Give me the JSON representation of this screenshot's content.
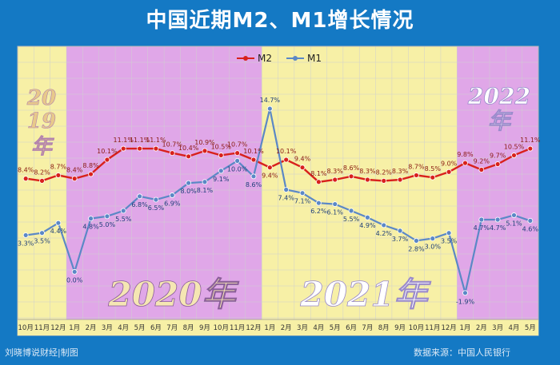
{
  "header": {
    "title": "中国近期M2、M1增长情况"
  },
  "footer": {
    "credit": "刘晓博说财经|制图",
    "source": "数据来源：中国人民银行"
  },
  "overlay": {
    "year_2019_top": "20",
    "year_2019_mid": "19",
    "year_2019_bottom": "年",
    "year_2020": "2020年",
    "year_2021": "2021年",
    "year_2022_top": "2022",
    "year_2022_bottom": "年"
  },
  "colors": {
    "m2": "#d8211c",
    "m1": "#5b88c6",
    "yellow": "#f7f0a6",
    "purple": "#e0a7e8"
  },
  "chart_data": {
    "type": "line",
    "title": "中国近期M2、M1增长情况",
    "legend_position": "top-center",
    "categories": [
      "10月",
      "11月",
      "12月",
      "1月",
      "2月",
      "3月",
      "4月",
      "5月",
      "6月",
      "7月",
      "8月",
      "9月",
      "10月",
      "11月",
      "12月",
      "1月",
      "2月",
      "3月",
      "4月",
      "5月",
      "6月",
      "7月",
      "8月",
      "9月",
      "10月",
      "11月",
      "12月",
      "1月",
      "2月",
      "3月",
      "4月",
      "5月"
    ],
    "series": [
      {
        "name": "M2",
        "values": [
          8.4,
          8.2,
          8.7,
          8.4,
          8.8,
          10.1,
          11.1,
          11.1,
          11.1,
          10.7,
          10.4,
          10.9,
          10.5,
          10.7,
          10.1,
          9.4,
          10.1,
          9.4,
          8.1,
          8.3,
          8.6,
          8.3,
          8.2,
          8.3,
          8.7,
          8.5,
          9.0,
          9.8,
          9.2,
          9.7,
          10.5,
          11.1
        ]
      },
      {
        "name": "M1",
        "values": [
          3.3,
          3.5,
          4.4,
          0.0,
          4.8,
          5.0,
          5.5,
          6.8,
          6.5,
          6.9,
          8.0,
          8.1,
          9.1,
          10.0,
          8.6,
          14.7,
          7.4,
          7.1,
          6.2,
          6.1,
          5.5,
          4.9,
          4.2,
          3.7,
          2.8,
          3.0,
          3.5,
          -1.9,
          4.7,
          4.7,
          5.1,
          4.6
        ]
      }
    ],
    "period_years": [
      {
        "label": "2019",
        "start": 0,
        "end": 2
      },
      {
        "label": "2020",
        "start": 3,
        "end": 14
      },
      {
        "label": "2021",
        "start": 15,
        "end": 26
      },
      {
        "label": "2022",
        "start": 27,
        "end": 31
      }
    ],
    "grid": true,
    "ylim": [
      -3,
      16
    ]
  }
}
